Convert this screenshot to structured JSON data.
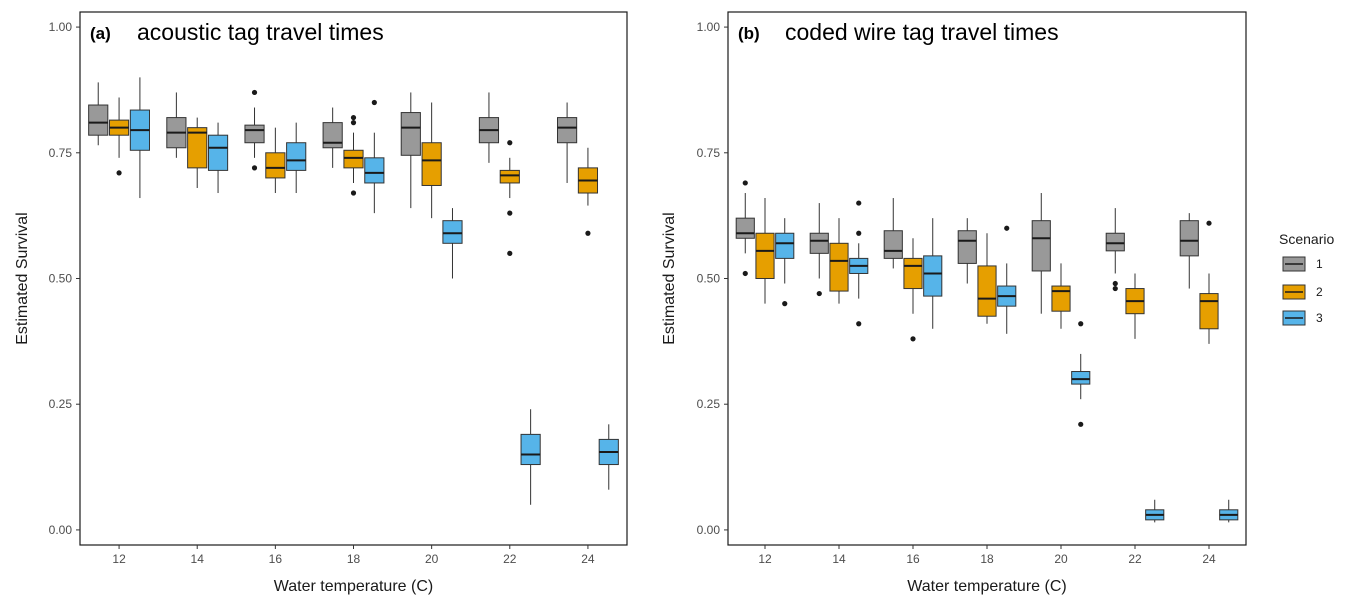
{
  "chart_data": [
    {
      "type": "boxplot",
      "panel_letter": "(a)",
      "title": "acoustic tag travel times",
      "xlabel": "Water temperature (C)",
      "ylabel": "Estimated Survival",
      "ylim": [
        -0.03,
        1.03
      ],
      "y_ticks": [
        "0.00",
        "0.25",
        "0.50",
        "0.75",
        "1.00"
      ],
      "categories": [
        "12",
        "14",
        "16",
        "18",
        "20",
        "22",
        "24"
      ],
      "series": [
        {
          "name": "1",
          "color": "#999999",
          "boxes": [
            {
              "min": 0.765,
              "q1": 0.785,
              "median": 0.81,
              "q3": 0.845,
              "max": 0.89,
              "outliers": []
            },
            {
              "min": 0.74,
              "q1": 0.76,
              "median": 0.79,
              "q3": 0.82,
              "max": 0.87,
              "outliers": []
            },
            {
              "min": 0.74,
              "q1": 0.77,
              "median": 0.795,
              "q3": 0.805,
              "max": 0.84,
              "outliers": [
                0.87,
                0.72
              ]
            },
            {
              "min": 0.72,
              "q1": 0.76,
              "median": 0.77,
              "q3": 0.81,
              "max": 0.84,
              "outliers": []
            },
            {
              "min": 0.64,
              "q1": 0.745,
              "median": 0.8,
              "q3": 0.83,
              "max": 0.87,
              "outliers": []
            },
            {
              "min": 0.73,
              "q1": 0.77,
              "median": 0.795,
              "q3": 0.82,
              "max": 0.87,
              "outliers": []
            },
            {
              "min": 0.69,
              "q1": 0.77,
              "median": 0.8,
              "q3": 0.82,
              "max": 0.85,
              "outliers": []
            }
          ]
        },
        {
          "name": "2",
          "color": "#e69f00",
          "boxes": [
            {
              "min": 0.74,
              "q1": 0.785,
              "median": 0.8,
              "q3": 0.815,
              "max": 0.86,
              "outliers": [
                0.71
              ]
            },
            {
              "min": 0.68,
              "q1": 0.72,
              "median": 0.79,
              "q3": 0.8,
              "max": 0.82,
              "outliers": []
            },
            {
              "min": 0.67,
              "q1": 0.7,
              "median": 0.72,
              "q3": 0.75,
              "max": 0.8,
              "outliers": []
            },
            {
              "min": 0.69,
              "q1": 0.72,
              "median": 0.74,
              "q3": 0.755,
              "max": 0.79,
              "outliers": [
                0.82,
                0.81,
                0.67
              ]
            },
            {
              "min": 0.62,
              "q1": 0.685,
              "median": 0.735,
              "q3": 0.77,
              "max": 0.85,
              "outliers": []
            },
            {
              "min": 0.66,
              "q1": 0.69,
              "median": 0.705,
              "q3": 0.715,
              "max": 0.74,
              "outliers": [
                0.77,
                0.63,
                0.55
              ]
            },
            {
              "min": 0.645,
              "q1": 0.67,
              "median": 0.695,
              "q3": 0.72,
              "max": 0.76,
              "outliers": [
                0.59
              ]
            }
          ]
        },
        {
          "name": "3",
          "color": "#56b4e9",
          "boxes": [
            {
              "min": 0.66,
              "q1": 0.755,
              "median": 0.795,
              "q3": 0.835,
              "max": 0.9,
              "outliers": []
            },
            {
              "min": 0.67,
              "q1": 0.715,
              "median": 0.76,
              "q3": 0.785,
              "max": 0.81,
              "outliers": []
            },
            {
              "min": 0.67,
              "q1": 0.715,
              "median": 0.735,
              "q3": 0.77,
              "max": 0.81,
              "outliers": []
            },
            {
              "min": 0.63,
              "q1": 0.69,
              "median": 0.71,
              "q3": 0.74,
              "max": 0.79,
              "outliers": [
                0.85
              ]
            },
            {
              "min": 0.5,
              "q1": 0.57,
              "median": 0.59,
              "q3": 0.615,
              "max": 0.64,
              "outliers": []
            },
            {
              "min": 0.05,
              "q1": 0.13,
              "median": 0.15,
              "q3": 0.19,
              "max": 0.24,
              "outliers": []
            },
            {
              "min": 0.08,
              "q1": 0.13,
              "median": 0.155,
              "q3": 0.18,
              "max": 0.21,
              "outliers": []
            }
          ]
        }
      ]
    },
    {
      "type": "boxplot",
      "panel_letter": "(b)",
      "title": "coded wire tag travel times",
      "xlabel": "Water temperature (C)",
      "ylabel": "Estimated Survival",
      "ylim": [
        -0.03,
        1.03
      ],
      "y_ticks": [
        "0.00",
        "0.25",
        "0.50",
        "0.75",
        "1.00"
      ],
      "categories": [
        "12",
        "14",
        "16",
        "18",
        "20",
        "22",
        "24"
      ],
      "legend_position": "right",
      "series": [
        {
          "name": "1",
          "color": "#999999",
          "boxes": [
            {
              "min": 0.55,
              "q1": 0.58,
              "median": 0.59,
              "q3": 0.62,
              "max": 0.67,
              "outliers": [
                0.69,
                0.51
              ]
            },
            {
              "min": 0.5,
              "q1": 0.55,
              "median": 0.575,
              "q3": 0.59,
              "max": 0.65,
              "outliers": [
                0.47
              ]
            },
            {
              "min": 0.52,
              "q1": 0.54,
              "median": 0.555,
              "q3": 0.595,
              "max": 0.66,
              "outliers": []
            },
            {
              "min": 0.49,
              "q1": 0.53,
              "median": 0.575,
              "q3": 0.595,
              "max": 0.62,
              "outliers": []
            },
            {
              "min": 0.43,
              "q1": 0.515,
              "median": 0.58,
              "q3": 0.615,
              "max": 0.67,
              "outliers": []
            },
            {
              "min": 0.51,
              "q1": 0.555,
              "median": 0.57,
              "q3": 0.59,
              "max": 0.64,
              "outliers": [
                0.49,
                0.48
              ]
            },
            {
              "min": 0.48,
              "q1": 0.545,
              "median": 0.575,
              "q3": 0.615,
              "max": 0.63,
              "outliers": []
            }
          ]
        },
        {
          "name": "2",
          "color": "#e69f00",
          "boxes": [
            {
              "min": 0.45,
              "q1": 0.5,
              "median": 0.555,
              "q3": 0.59,
              "max": 0.66,
              "outliers": []
            },
            {
              "min": 0.45,
              "q1": 0.475,
              "median": 0.535,
              "q3": 0.57,
              "max": 0.62,
              "outliers": []
            },
            {
              "min": 0.43,
              "q1": 0.48,
              "median": 0.525,
              "q3": 0.54,
              "max": 0.58,
              "outliers": [
                0.38
              ]
            },
            {
              "min": 0.41,
              "q1": 0.425,
              "median": 0.46,
              "q3": 0.525,
              "max": 0.59,
              "outliers": []
            },
            {
              "min": 0.4,
              "q1": 0.435,
              "median": 0.475,
              "q3": 0.485,
              "max": 0.53,
              "outliers": []
            },
            {
              "min": 0.38,
              "q1": 0.43,
              "median": 0.455,
              "q3": 0.48,
              "max": 0.51,
              "outliers": []
            },
            {
              "min": 0.37,
              "q1": 0.4,
              "median": 0.455,
              "q3": 0.47,
              "max": 0.51,
              "outliers": [
                0.61
              ]
            }
          ]
        },
        {
          "name": "3",
          "color": "#56b4e9",
          "boxes": [
            {
              "min": 0.49,
              "q1": 0.54,
              "median": 0.57,
              "q3": 0.59,
              "max": 0.62,
              "outliers": [
                0.45
              ]
            },
            {
              "min": 0.46,
              "q1": 0.51,
              "median": 0.525,
              "q3": 0.54,
              "max": 0.57,
              "outliers": [
                0.65,
                0.59,
                0.41
              ]
            },
            {
              "min": 0.4,
              "q1": 0.465,
              "median": 0.51,
              "q3": 0.545,
              "max": 0.62,
              "outliers": []
            },
            {
              "min": 0.39,
              "q1": 0.445,
              "median": 0.465,
              "q3": 0.485,
              "max": 0.53,
              "outliers": [
                0.6
              ]
            },
            {
              "min": 0.26,
              "q1": 0.29,
              "median": 0.3,
              "q3": 0.315,
              "max": 0.35,
              "outliers": [
                0.41,
                0.21
              ]
            },
            {
              "min": 0.015,
              "q1": 0.02,
              "median": 0.03,
              "q3": 0.04,
              "max": 0.06,
              "outliers": []
            },
            {
              "min": 0.015,
              "q1": 0.02,
              "median": 0.03,
              "q3": 0.04,
              "max": 0.06,
              "outliers": []
            }
          ]
        }
      ]
    }
  ],
  "legend": {
    "title": "Scenario",
    "items": [
      {
        "label": "1",
        "color": "#999999"
      },
      {
        "label": "2",
        "color": "#e69f00"
      },
      {
        "label": "3",
        "color": "#56b4e9"
      }
    ]
  }
}
